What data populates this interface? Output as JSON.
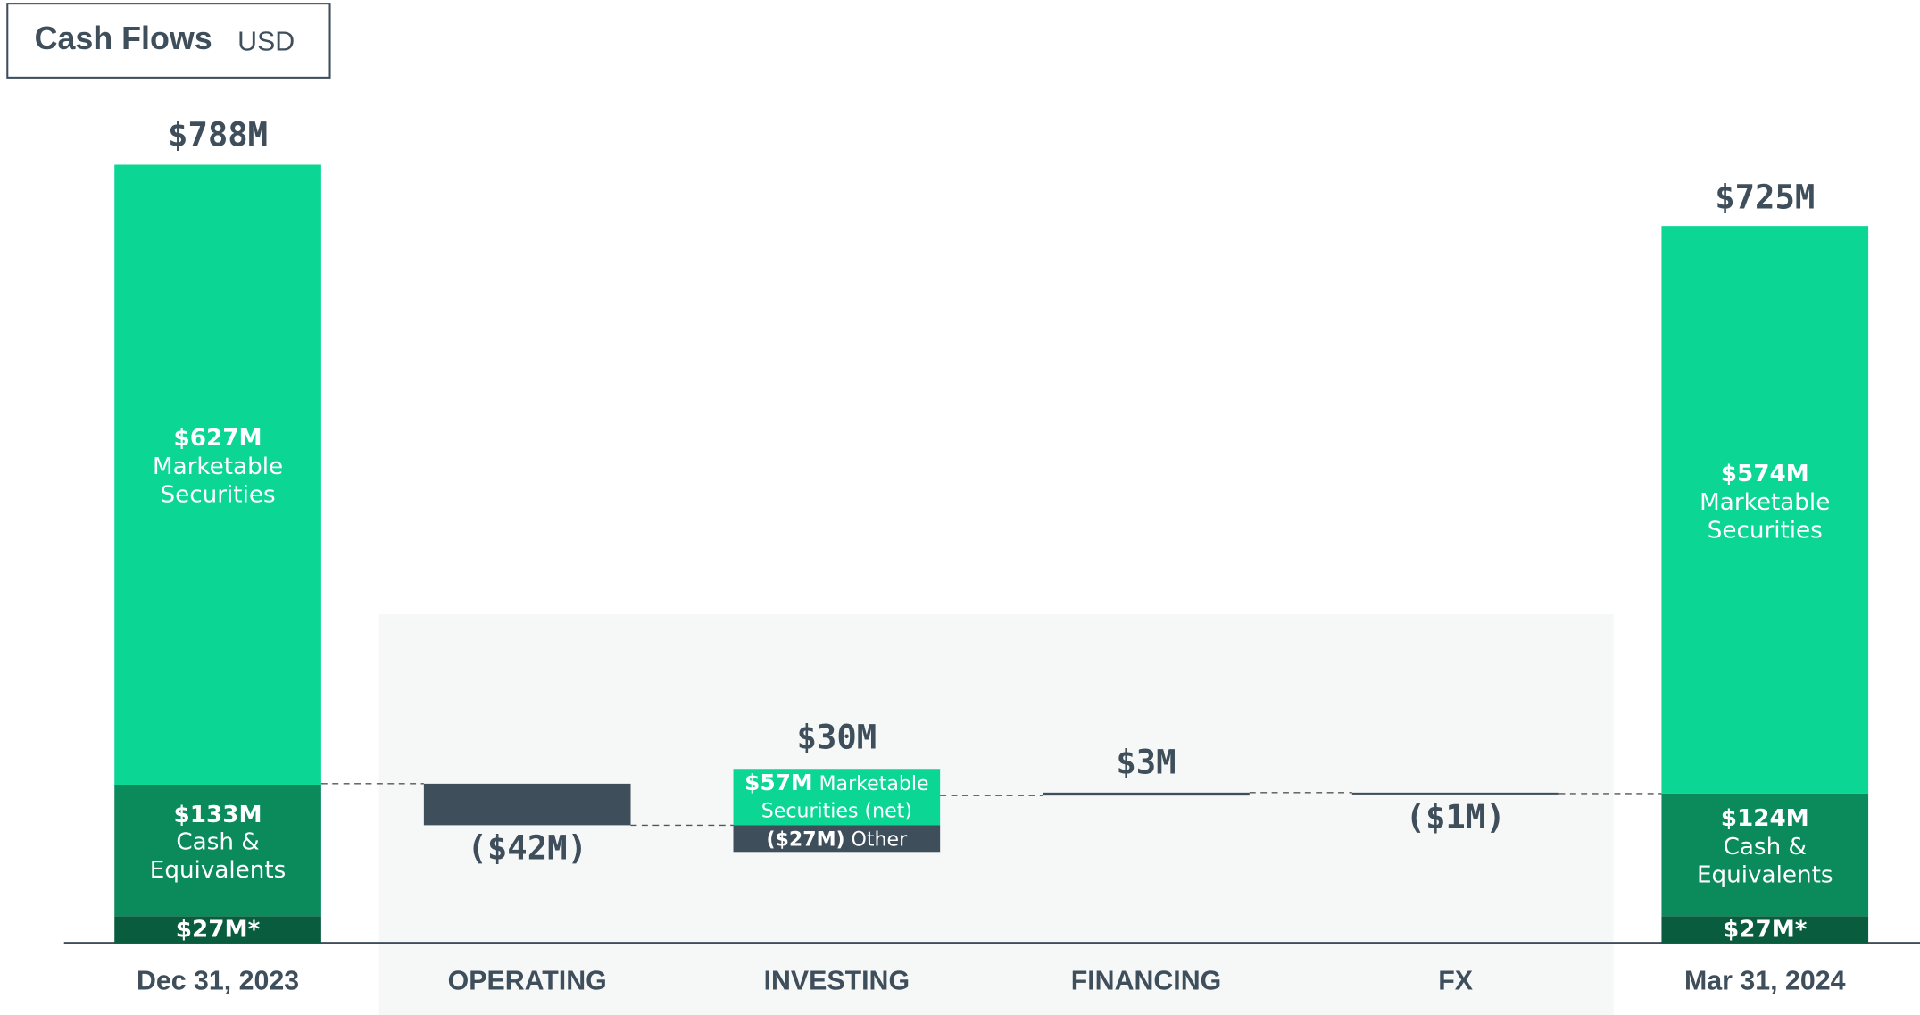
{
  "title": "Cash Flows",
  "unit": "USD",
  "chart_data": {
    "type": "waterfall",
    "categories": [
      "Dec 31, 2023",
      "OPERATING",
      "INVESTING",
      "FINANCING",
      "FX",
      "Mar 31, 2024"
    ],
    "bars": [
      {
        "value": 788,
        "value_label": "$788M",
        "segments": [
          {
            "value": 27,
            "value_label": "$27M*",
            "color": "#0a5c3f"
          },
          {
            "value": 133,
            "value_label": "$133M",
            "name": "Cash & Equivalents",
            "color": "#0b8a5c"
          },
          {
            "value": 627,
            "value_label": "$627M",
            "name": "Marketable Securities",
            "color": "#0cd693"
          }
        ]
      },
      {
        "value": -42,
        "value_label": "($42M)",
        "color": "#3f4e5b"
      },
      {
        "value": 30,
        "value_label": "$30M",
        "components": [
          {
            "value": 57,
            "value_label": "$57M",
            "name": "Marketable Securities (net)",
            "color": "#0cd693"
          },
          {
            "value": -27,
            "value_label": "($27M)",
            "name": "Other",
            "color": "#3f4e5b"
          }
        ]
      },
      {
        "value": 3,
        "value_label": "$3M",
        "color": "#3f4e5b"
      },
      {
        "value": -1,
        "value_label": "($1M)",
        "color": "#3f4e5b"
      },
      {
        "value": 725,
        "value_label": "$725M",
        "segments": [
          {
            "value": 27,
            "value_label": "$27M*",
            "color": "#0a5c3f"
          },
          {
            "value": 124,
            "value_label": "$124M",
            "name": "Cash & Equivalents",
            "color": "#0b8a5c"
          },
          {
            "value": 574,
            "value_label": "$574M",
            "name": "Marketable Securities",
            "color": "#0cd693"
          }
        ]
      }
    ]
  }
}
